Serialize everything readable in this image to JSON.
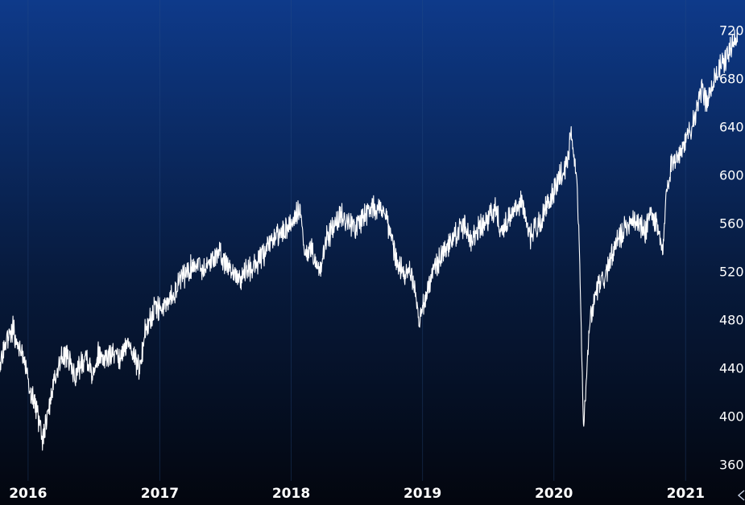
{
  "chart_data": {
    "type": "line",
    "title": "",
    "xlabel": "",
    "ylabel": "",
    "x_tick_labels": [
      "2016",
      "2017",
      "2018",
      "2019",
      "2020",
      "2021"
    ],
    "y_tick_labels": [
      "360",
      "400",
      "440",
      "480",
      "520",
      "560",
      "600",
      "640",
      "680",
      "720"
    ],
    "y_ticks": [
      360,
      400,
      440,
      480,
      520,
      560,
      600,
      640,
      680,
      720
    ],
    "ylim": [
      345,
      745
    ],
    "xlim": [
      "2015-10-15",
      "2021-06-15"
    ],
    "grid": {
      "vertical": true,
      "horizontal": false
    },
    "colors": {
      "background_top": "#0e3a8a",
      "background_bottom": "#03060e",
      "line": "#ffffff",
      "text": "#ffffff"
    },
    "corner_icon": "chevron-left-icon",
    "series": [
      {
        "name": "",
        "x": [
          "2015-10-15",
          "2015-11-01",
          "2015-11-20",
          "2015-12-05",
          "2015-12-20",
          "2016-01-05",
          "2016-01-20",
          "2016-02-01",
          "2016-02-11",
          "2016-02-25",
          "2016-03-10",
          "2016-03-25",
          "2016-04-10",
          "2016-04-25",
          "2016-05-10",
          "2016-05-25",
          "2016-06-10",
          "2016-06-27",
          "2016-07-15",
          "2016-08-01",
          "2016-08-20",
          "2016-09-10",
          "2016-09-25",
          "2016-10-10",
          "2016-10-28",
          "2016-11-08",
          "2016-11-20",
          "2016-12-05",
          "2016-12-20",
          "2017-01-10",
          "2017-02-01",
          "2017-03-01",
          "2017-03-20",
          "2017-04-15",
          "2017-05-05",
          "2017-05-25",
          "2017-06-10",
          "2017-06-30",
          "2017-07-20",
          "2017-08-10",
          "2017-08-28",
          "2017-09-15",
          "2017-10-10",
          "2017-10-30",
          "2017-11-20",
          "2017-12-10",
          "2018-01-05",
          "2018-01-26",
          "2018-02-08",
          "2018-02-25",
          "2018-03-10",
          "2018-03-23",
          "2018-04-10",
          "2018-05-01",
          "2018-05-20",
          "2018-06-10",
          "2018-06-30",
          "2018-07-20",
          "2018-08-10",
          "2018-08-29",
          "2018-09-20",
          "2018-10-05",
          "2018-10-25",
          "2018-11-10",
          "2018-11-25",
          "2018-12-10",
          "2018-12-24",
          "2019-01-10",
          "2019-01-31",
          "2019-02-20",
          "2019-03-15",
          "2019-04-10",
          "2019-04-30",
          "2019-05-15",
          "2019-06-03",
          "2019-06-25",
          "2019-07-26",
          "2019-08-05",
          "2019-08-25",
          "2019-09-15",
          "2019-10-03",
          "2019-10-25",
          "2019-11-20",
          "2019-12-15",
          "2020-01-10",
          "2020-01-31",
          "2020-02-19",
          "2020-03-05",
          "2020-03-12",
          "2020-03-23",
          "2020-04-10",
          "2020-04-30",
          "2020-05-20",
          "2020-06-08",
          "2020-06-26",
          "2020-07-15",
          "2020-08-05",
          "2020-08-25",
          "2020-09-10",
          "2020-09-25",
          "2020-10-12",
          "2020-10-30",
          "2020-11-09",
          "2020-11-25",
          "2020-12-15",
          "2021-01-05",
          "2021-01-29",
          "2021-02-15",
          "2021-03-04",
          "2021-03-20",
          "2021-04-10",
          "2021-04-30",
          "2021-05-12",
          "2021-05-25"
        ],
        "values": [
          440,
          462,
          472,
          458,
          448,
          425,
          410,
          395,
          380,
          402,
          425,
          440,
          452,
          446,
          432,
          442,
          452,
          436,
          452,
          448,
          452,
          446,
          455,
          462,
          445,
          440,
          470,
          480,
          490,
          488,
          500,
          512,
          520,
          528,
          522,
          530,
          536,
          528,
          522,
          512,
          520,
          522,
          532,
          540,
          550,
          552,
          562,
          572,
          530,
          540,
          528,
          520,
          548,
          556,
          568,
          562,
          556,
          566,
          572,
          575,
          570,
          548,
          525,
          518,
          522,
          508,
          476,
          500,
          520,
          532,
          542,
          552,
          560,
          546,
          554,
          562,
          574,
          552,
          560,
          572,
          580,
          548,
          560,
          575,
          595,
          605,
          632,
          595,
          535,
          390,
          478,
          505,
          515,
          530,
          545,
          555,
          565,
          560,
          552,
          570,
          558,
          535,
          590,
          612,
          618,
          630,
          652,
          670,
          660,
          680,
          690,
          700,
          712,
          710
        ]
      }
    ]
  }
}
